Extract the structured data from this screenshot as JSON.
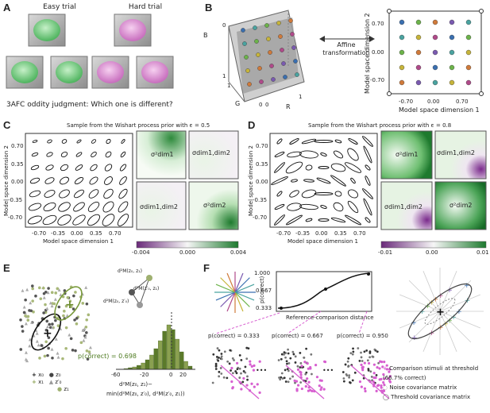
{
  "panelA": {
    "label": "A",
    "easy_title": "Easy trial",
    "hard_title": "Hard trial",
    "caption": "3AFC oddity judgment: Which one is different?",
    "colors": {
      "easy": "#7fd08a",
      "hard": "#e39ad8"
    }
  },
  "panelB": {
    "label": "B",
    "axis_b": "B",
    "axis_g": "G",
    "axis_r": "R",
    "cube_ticks": [
      "0",
      "1",
      "1",
      "0",
      "0",
      "1"
    ],
    "arrow_label_1": "Affine",
    "arrow_label_2": "transformation",
    "ylabel": "Model space dimension 2",
    "xlabel": "Model space dimension 1",
    "yticks": [
      "0.70",
      "0.00",
      "-0.70"
    ],
    "xticks": [
      "-0.70",
      "0.00",
      "0.70"
    ]
  },
  "panelC": {
    "label": "C",
    "title": "Sample from the Wishart process prior with ϵ = 0.5",
    "ylabel": "Model space dimension 2",
    "xlabel": "Model space dimension 1",
    "yticks": [
      "0.70",
      "0.35",
      "0.00",
      "-0.35",
      "-0.70"
    ],
    "xticks": [
      "-0.70",
      "-0.35",
      "0.00",
      "0.35",
      "0.70"
    ],
    "heat_labels": [
      "σ²dim1",
      "σdim1,dim2",
      "σdim1,dim2",
      "σ²dim2"
    ],
    "cbar_ticks": [
      "-0.004",
      "0.000",
      "0.004"
    ]
  },
  "panelD": {
    "label": "D",
    "title": "Sample from the Wishart process prior with ϵ = 0.8",
    "ylabel": "Model space dimension 2",
    "xlabel": "Model space dimension 1",
    "yticks": [
      "0.70",
      "0.35",
      "0.00",
      "-0.35",
      "-0.70"
    ],
    "xticks": [
      "-0.70",
      "-0.35",
      "0.00",
      "0.35",
      "0.70"
    ],
    "heat_labels": [
      "σ²dim1",
      "σdim1,dim2",
      "σdim1,dim2",
      "σ²dim2"
    ],
    "cbar_ticks": [
      "-0.01",
      "0.00",
      "0.01"
    ]
  },
  "panelE": {
    "label": "E",
    "d1": "d²M(z₀, z₁)",
    "d2": "d²M(z₀, z′₀)",
    "d3": "d²M(z′₀, z₁)",
    "pcorrect": "p(correct) = 0.698",
    "xticks": [
      "-60",
      "-20",
      "0",
      "20"
    ],
    "legend": [
      "x₀",
      "x₁",
      "z₀",
      "z′₀",
      "z₁"
    ],
    "xlabel_1": "d²M(z₀, z₁)−",
    "xlabel_2": "min(d²M(z₀, z′₀), d²M(z′₀, z₁))",
    "colors": {
      "x0": "#111111",
      "x1": "#8aa050",
      "hist": "#5b7a2a"
    }
  },
  "panelF": {
    "label": "F",
    "ylabel": "p(correct)",
    "yticks": [
      "1.000",
      "0.667",
      "0.333"
    ],
    "xlabel": "Reference-comparison distance",
    "trials": [
      "p(correct) = 0.333",
      "p(correct) = 0.667",
      "p(correct) = 0.950"
    ],
    "ellipsis": "•••",
    "legend": [
      "Comparison stimuli at threshold (66.7% correct)",
      "Noise covariance matrix",
      "Threshold covariance matrix"
    ],
    "colors": {
      "comparison": "#d75fd0",
      "curve": "#111111"
    }
  }
}
